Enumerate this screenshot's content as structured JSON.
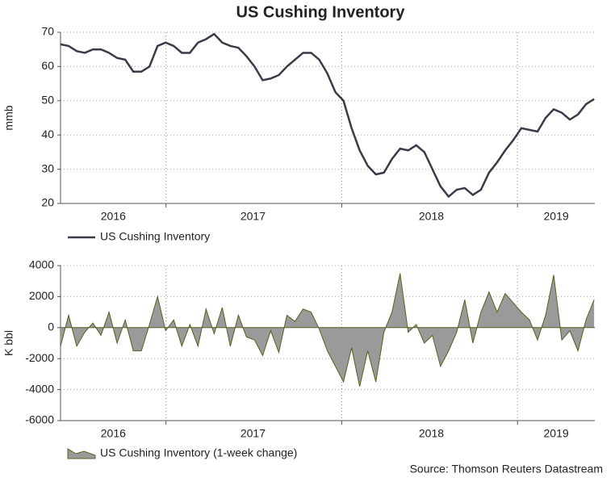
{
  "chart_data": [
    {
      "type": "line",
      "title": "US Cushing Inventory",
      "y_label": "mmb",
      "x": [
        2016.4,
        2016.446,
        2016.492,
        2016.538,
        2016.584,
        2016.63,
        2016.676,
        2016.722,
        2016.768,
        2016.814,
        2016.86,
        2016.906,
        2016.952,
        2016.998,
        2017.044,
        2017.09,
        2017.136,
        2017.182,
        2017.228,
        2017.274,
        2017.32,
        2017.366,
        2017.412,
        2017.458,
        2017.504,
        2017.55,
        2017.596,
        2017.642,
        2017.688,
        2017.734,
        2017.78,
        2017.826,
        2017.872,
        2017.918,
        2017.964,
        2018.01,
        2018.056,
        2018.102,
        2018.148,
        2018.194,
        2018.24,
        2018.286,
        2018.332,
        2018.378,
        2018.424,
        2018.47,
        2018.516,
        2018.562,
        2018.608,
        2018.654,
        2018.7,
        2018.746,
        2018.792,
        2018.838,
        2018.884,
        2018.93,
        2018.976,
        2019.022,
        2019.068,
        2019.114,
        2019.16,
        2019.206,
        2019.252,
        2019.298,
        2019.344,
        2019.39,
        2019.436
      ],
      "series": [
        {
          "name": "US Cushing Inventory",
          "color": "#3a3a48",
          "values": [
            66.5,
            66,
            64.5,
            64,
            65,
            65,
            64,
            62.5,
            62,
            58.5,
            58.5,
            60,
            66,
            67,
            66,
            64,
            64,
            67,
            68,
            69.5,
            67,
            66,
            65.5,
            63,
            60,
            56,
            56.5,
            57.5,
            60,
            62,
            64,
            64,
            62,
            58,
            52.5,
            50,
            42,
            35.5,
            31,
            28.5,
            29,
            33,
            36,
            35.5,
            37,
            35,
            30,
            25,
            22,
            24,
            24.5,
            22.5,
            24,
            29,
            32,
            35.5,
            38.5,
            42,
            41.5,
            41,
            45,
            47.5,
            46.5,
            44.5,
            46,
            49,
            50.5
          ]
        }
      ],
      "xlim": [
        2016.4,
        2019.44
      ],
      "xticks": [
        {
          "value": 2016.7,
          "label": "2016"
        },
        {
          "value": 2017.495,
          "label": "2017"
        },
        {
          "value": 2018.51,
          "label": "2018"
        },
        {
          "value": 2019.22,
          "label": "2019"
        }
      ],
      "xgrid": [
        2017,
        2018,
        2019
      ],
      "ylim": [
        20,
        70
      ],
      "yticks": [
        20,
        30,
        40,
        50,
        60,
        70
      ],
      "grid": true
    },
    {
      "type": "area",
      "y_label": "K bbl",
      "x": [
        2016.4,
        2016.446,
        2016.492,
        2016.538,
        2016.584,
        2016.63,
        2016.676,
        2016.722,
        2016.768,
        2016.814,
        2016.86,
        2016.906,
        2016.952,
        2016.998,
        2017.044,
        2017.09,
        2017.136,
        2017.182,
        2017.228,
        2017.274,
        2017.32,
        2017.366,
        2017.412,
        2017.458,
        2017.504,
        2017.55,
        2017.596,
        2017.642,
        2017.688,
        2017.734,
        2017.78,
        2017.826,
        2017.872,
        2017.918,
        2017.964,
        2018.01,
        2018.056,
        2018.102,
        2018.148,
        2018.194,
        2018.24,
        2018.286,
        2018.332,
        2018.378,
        2018.424,
        2018.47,
        2018.516,
        2018.562,
        2018.608,
        2018.654,
        2018.7,
        2018.746,
        2018.792,
        2018.838,
        2018.884,
        2018.93,
        2018.976,
        2019.022,
        2019.068,
        2019.114,
        2019.16,
        2019.206,
        2019.252,
        2019.298,
        2019.344,
        2019.39,
        2019.436
      ],
      "series": [
        {
          "name": "US Cushing Inventory (1-week change)",
          "color": "#9a9a9a",
          "edge_color": "#5c5c22",
          "values": [
            -1200,
            800,
            -1200,
            -300,
            300,
            -500,
            1000,
            -1000,
            500,
            -1500,
            -1500,
            200,
            2000,
            -200,
            500,
            -1200,
            200,
            -1200,
            1200,
            -400,
            1300,
            -1200,
            800,
            -600,
            -800,
            -1800,
            -200,
            -1600,
            800,
            400,
            1200,
            1000,
            -100,
            -1500,
            -2500,
            -3500,
            -1300,
            -3800,
            -1500,
            -3500,
            -300,
            1000,
            3500,
            -300,
            200,
            -1000,
            -500,
            -2500,
            -1500,
            -300,
            1800,
            -1000,
            1000,
            2300,
            1000,
            2200,
            1600,
            1000,
            500,
            -800,
            800,
            3400,
            -800,
            -200,
            -1500,
            500,
            1800
          ]
        }
      ],
      "xlim": [
        2016.4,
        2019.44
      ],
      "xticks": [
        {
          "value": 2016.7,
          "label": "2016"
        },
        {
          "value": 2017.495,
          "label": "2017"
        },
        {
          "value": 2018.51,
          "label": "2018"
        },
        {
          "value": 2019.22,
          "label": "2019"
        }
      ],
      "xgrid": [
        2017,
        2018,
        2019
      ],
      "ylim": [
        -6000,
        4000
      ],
      "yticks": [
        -6000,
        -4000,
        -2000,
        0,
        2000,
        4000
      ],
      "grid": true
    }
  ],
  "source": "Source: Thomson Reuters Datastream"
}
